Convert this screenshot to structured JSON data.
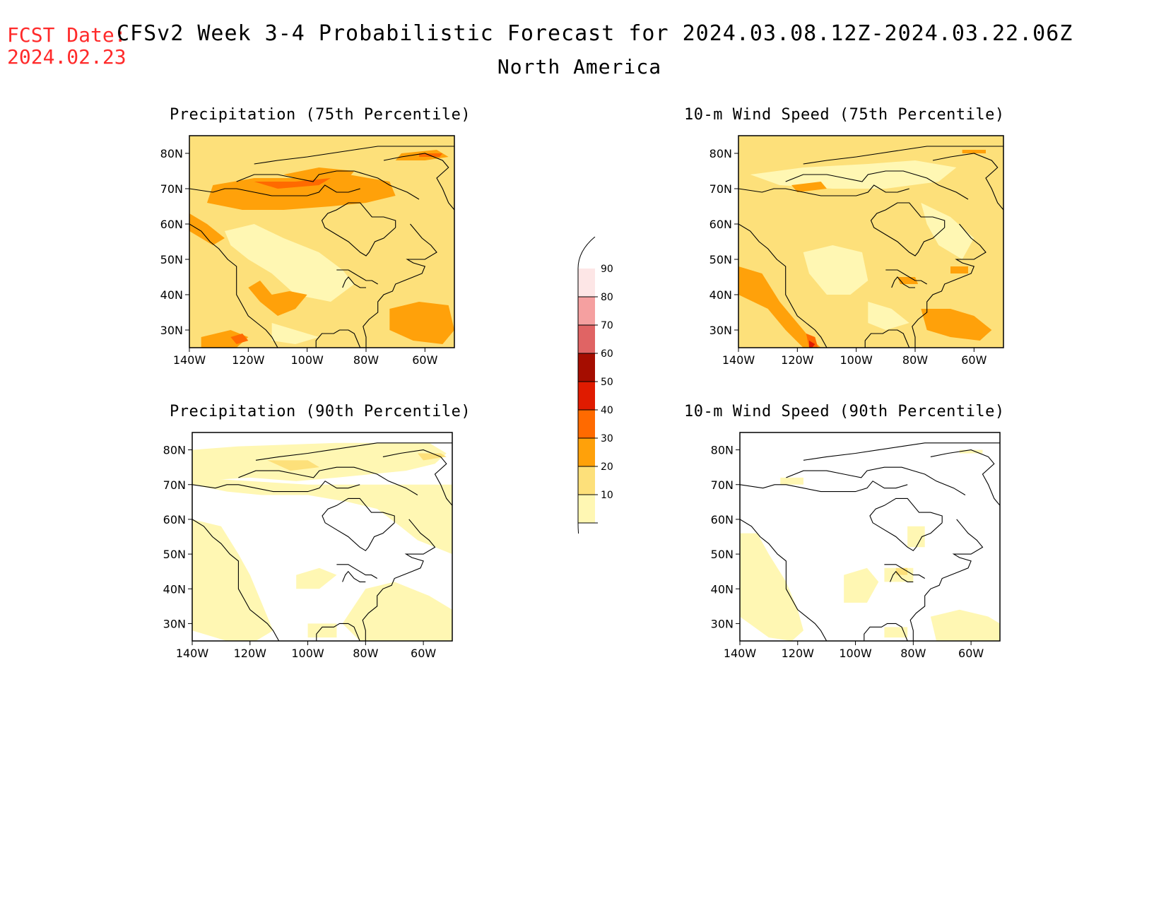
{
  "header": {
    "fcst_label": "FCST Date:",
    "fcst_date": "2024.02.23",
    "title": "CFSv2 Week 3-4 Probabilistic Forecast for 2024.03.08.12Z-2024.03.22.06Z",
    "region": "North America"
  },
  "axes": {
    "lat_labels": [
      "80N",
      "70N",
      "60N",
      "50N",
      "40N",
      "30N"
    ],
    "lat_values": [
      80,
      70,
      60,
      50,
      40,
      30
    ],
    "lon_labels": [
      "140W",
      "120W",
      "100W",
      "80W",
      "60W"
    ],
    "lon_values": [
      -140,
      -120,
      -100,
      -80,
      -60
    ],
    "lat_range": [
      25,
      85
    ],
    "lon_range": [
      -140,
      -50
    ]
  },
  "panels": [
    {
      "id": "precip-75",
      "title": "Precipitation (75th Percentile)",
      "field": "precipitation",
      "percentile": 75
    },
    {
      "id": "wind-75",
      "title": "10-m Wind Speed (75th Percentile)",
      "field": "wind",
      "percentile": 75
    },
    {
      "id": "precip-90",
      "title": "Precipitation (90th Percentile)",
      "field": "precipitation",
      "percentile": 90
    },
    {
      "id": "wind-90",
      "title": "10-m Wind Speed (90th Percentile)",
      "field": "wind",
      "percentile": 90
    }
  ],
  "colorbar": {
    "levels": [
      "10",
      "20",
      "30",
      "40",
      "50",
      "60",
      "70",
      "80",
      "90"
    ],
    "colors": [
      "#fff7b3",
      "#fde07a",
      "#ffa10a",
      "#ff6a00",
      "#e01b00",
      "#a50d00",
      "#e06464",
      "#f5a0a0",
      "#fde6e6"
    ]
  },
  "colors": {
    "title_red": "#ff2a2a",
    "level_10": "#fff7b3",
    "level_20": "#fde07a",
    "level_30": "#ffa10a",
    "level_40": "#ff6a00",
    "level_50": "#e01b00"
  }
}
